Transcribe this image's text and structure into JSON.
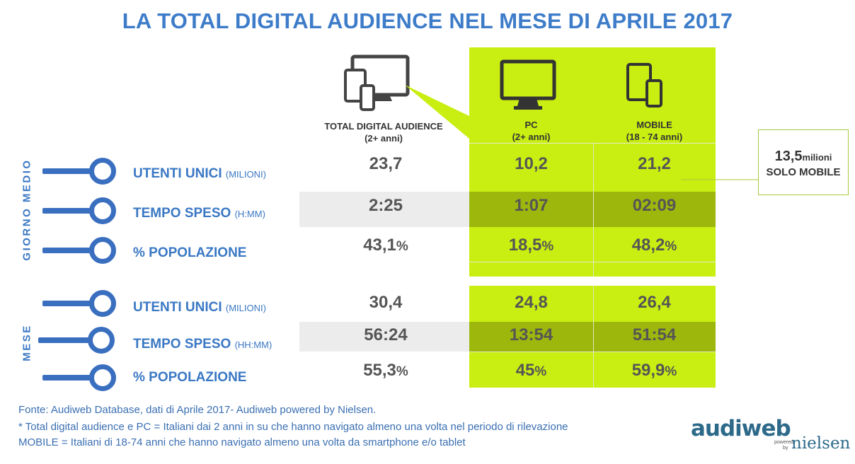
{
  "title": "LA TOTAL DIGITAL AUDIENCE NEL MESE DI APRILE 2017",
  "columns": [
    {
      "label": "TOTAL DIGITAL AUDIENCE",
      "sub": "(2+ anni)",
      "icon": "devices-icon"
    },
    {
      "label": "PC",
      "sub": "(2+ anni)",
      "icon": "desktop-monitor-icon"
    },
    {
      "label": "MOBILE",
      "sub": "(18 - 74 anni)",
      "icon": "tablet-smartphone-icon"
    }
  ],
  "sections": [
    {
      "label": "GIORNO MEDIO",
      "rows": [
        {
          "label": "UTENTI UNICI",
          "unit": "(MILIONI)",
          "values": [
            "23,7",
            "10,2",
            "21,2"
          ],
          "suffix": ""
        },
        {
          "label": "TEMPO SPESO",
          "unit": "(H:MM)",
          "values": [
            "2:25",
            "1:07",
            "02:09"
          ],
          "suffix": ""
        },
        {
          "label": "% POPOLAZIONE",
          "unit": "",
          "values": [
            "43,1",
            "18,5",
            "48,2"
          ],
          "suffix": "%"
        }
      ]
    },
    {
      "label": "MESE",
      "rows": [
        {
          "label": "UTENTI UNICI",
          "unit": "(MILIONI)",
          "values": [
            "30,4",
            "24,8",
            "26,4"
          ],
          "suffix": ""
        },
        {
          "label": "TEMPO SPESO",
          "unit": "(HH:MM)",
          "values": [
            "56:24",
            "13:54",
            "51:54"
          ],
          "suffix": ""
        },
        {
          "label": "% POPOLAZIONE",
          "unit": "",
          "values": [
            "55,3",
            "45",
            "59,9"
          ],
          "suffix": "%"
        }
      ]
    }
  ],
  "callout": {
    "value": "13,5",
    "unit": "milioni",
    "label": "SOLO MOBILE"
  },
  "footer": {
    "source": "Fonte: Audiweb Database, dati di Aprile 2017- Audiweb powered by Nielsen.",
    "note1": "* Total digital audience e PC = Italiani dai 2 anni in su che hanno navigato almeno una volta nel periodo di rilevazione",
    "note2": "MOBILE = Italiani di 18-74 anni che hanno navigato almeno una volta da smartphone e/o tablet"
  },
  "logo": {
    "brand": "audiweb",
    "powered": "powered",
    "by": "by",
    "partner": "nielsen"
  },
  "colors": {
    "title": "#3d7cc9",
    "green": "#c9ee12",
    "dark_green": "#9db70d",
    "blue": "#3a6fc0",
    "gray_band": "#ececec"
  },
  "chart_data": {
    "type": "table",
    "title": "LA TOTAL DIGITAL AUDIENCE NEL MESE DI APRILE 2017",
    "columns": [
      "TOTAL DIGITAL AUDIENCE (2+ anni)",
      "PC (2+ anni)",
      "MOBILE (18 - 74 anni)"
    ],
    "rows": [
      {
        "section": "GIORNO MEDIO",
        "metric": "UTENTI UNICI (MILIONI)",
        "values": [
          23.7,
          10.2,
          21.2
        ]
      },
      {
        "section": "GIORNO MEDIO",
        "metric": "TEMPO SPESO (H:MM)",
        "values": [
          "2:25",
          "1:07",
          "02:09"
        ]
      },
      {
        "section": "GIORNO MEDIO",
        "metric": "% POPOLAZIONE",
        "values": [
          43.1,
          18.5,
          48.2
        ]
      },
      {
        "section": "MESE",
        "metric": "UTENTI UNICI (MILIONI)",
        "values": [
          30.4,
          24.8,
          26.4
        ]
      },
      {
        "section": "MESE",
        "metric": "TEMPO SPESO (HH:MM)",
        "values": [
          "56:24",
          "13:54",
          "51:54"
        ]
      },
      {
        "section": "MESE",
        "metric": "% POPOLAZIONE",
        "values": [
          55.3,
          45,
          59.9
        ]
      }
    ]
  }
}
